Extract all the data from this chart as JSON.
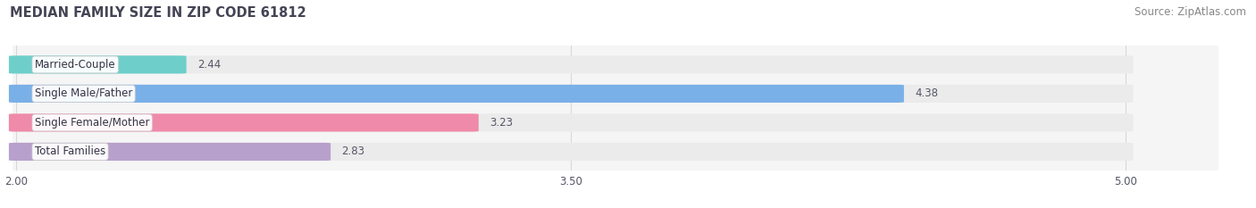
{
  "title": "MEDIAN FAMILY SIZE IN ZIP CODE 61812",
  "source": "Source: ZipAtlas.com",
  "categories": [
    "Married-Couple",
    "Single Male/Father",
    "Single Female/Mother",
    "Total Families"
  ],
  "values": [
    2.44,
    4.38,
    3.23,
    2.83
  ],
  "bar_colors": [
    "#6ecfca",
    "#7ab0e8",
    "#f08aaa",
    "#b8a0cc"
  ],
  "bar_bg_color": "#ebebeb",
  "xlim_min": 2.0,
  "xlim_max": 5.0,
  "xticks": [
    2.0,
    3.5,
    5.0
  ],
  "xtick_labels": [
    "2.00",
    "3.50",
    "5.00"
  ],
  "bar_height": 0.58,
  "value_fontsize": 8.5,
  "label_fontsize": 8.5,
  "title_fontsize": 10.5,
  "source_fontsize": 8.5,
  "fig_bg_color": "#ffffff",
  "axes_bg_color": "#f5f5f5",
  "grid_color": "#d8d8d8",
  "text_color": "#555566",
  "title_color": "#444455"
}
